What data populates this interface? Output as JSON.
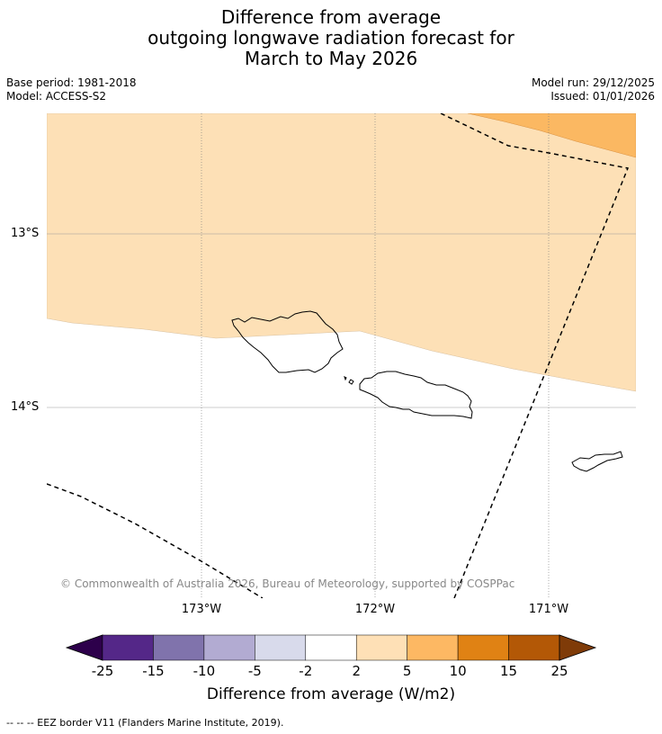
{
  "title": {
    "line1": "Difference from average",
    "line2": "outgoing longwave radiation forecast for",
    "line3": "March to May 2026"
  },
  "meta": {
    "base_period": "Base period: 1981-2018",
    "model": "Model: ACCESS-S2",
    "model_run": "Model run: 29/12/2025",
    "issued": "Issued: 01/01/2026"
  },
  "map": {
    "lat_labels": [
      "13°S",
      "14°S"
    ],
    "lon_labels": [
      "173°W",
      "172°W",
      "171°W"
    ],
    "copyright": "© Commonwealth of Australia 2026, Bureau of Meteorology, supported by COSPPac",
    "colors": {
      "class_2_5": "#fde0b6",
      "class_5_10": "#fbb862",
      "neutral": "#ffffff"
    }
  },
  "colorbar": {
    "ticks": [
      "-25",
      "-15",
      "-10",
      "-5",
      "-2",
      "2",
      "5",
      "10",
      "15",
      "25"
    ],
    "colors": [
      "#2d004b",
      "#542788",
      "#8073ac",
      "#b2abd2",
      "#d8daeb",
      "#ffffff",
      "#fee0b6",
      "#fdb863",
      "#e08214",
      "#b35806",
      "#7f3b08"
    ],
    "label": "Difference from average (W/m2)"
  },
  "legend": {
    "eez_note": "--  --  -- EEZ border V11 (Flanders Marine Institute, 2019)."
  }
}
